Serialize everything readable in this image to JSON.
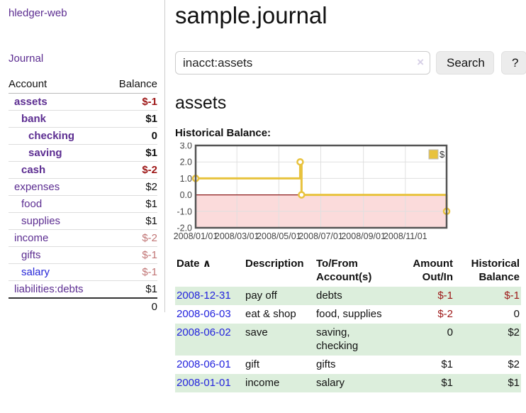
{
  "app": {
    "title": "hledger-web"
  },
  "sidebar": {
    "journal_label": "Journal",
    "accounts_table": {
      "headers": {
        "account": "Account",
        "balance": "Balance"
      },
      "rows": [
        {
          "name": "assets",
          "balance": "$-1",
          "depth": 1,
          "bold": true,
          "balance_style": "negstrong",
          "link_style": "purple"
        },
        {
          "name": "bank",
          "balance": "$1",
          "depth": 2,
          "bold": true,
          "balance_style": "normal",
          "link_style": "purple"
        },
        {
          "name": "checking",
          "balance": "0",
          "depth": 3,
          "bold": true,
          "balance_style": "normal",
          "link_style": "purple"
        },
        {
          "name": "saving",
          "balance": "$1",
          "depth": 3,
          "bold": true,
          "balance_style": "normal",
          "link_style": "purple"
        },
        {
          "name": "cash",
          "balance": "$-2",
          "depth": 2,
          "bold": true,
          "balance_style": "negstrong",
          "link_style": "purple"
        },
        {
          "name": "expenses",
          "balance": "$2",
          "depth": 1,
          "bold": false,
          "balance_style": "normal",
          "link_style": "purple"
        },
        {
          "name": "food",
          "balance": "$1",
          "depth": 2,
          "bold": false,
          "balance_style": "normal",
          "link_style": "purple"
        },
        {
          "name": "supplies",
          "balance": "$1",
          "depth": 2,
          "bold": false,
          "balance_style": "normal",
          "link_style": "purple"
        },
        {
          "name": "income",
          "balance": "$-2",
          "depth": 1,
          "bold": false,
          "balance_style": "negmuted",
          "link_style": "purple"
        },
        {
          "name": "gifts",
          "balance": "$-1",
          "depth": 2,
          "bold": false,
          "balance_style": "negmuted",
          "link_style": "purple"
        },
        {
          "name": "salary",
          "balance": "$-1",
          "depth": 2,
          "bold": false,
          "balance_style": "negmuted",
          "link_style": "blue"
        },
        {
          "name": "liabilities:debts",
          "balance": "$1",
          "depth": 1,
          "bold": false,
          "balance_style": "normal",
          "link_style": "purple"
        }
      ],
      "total": "0"
    }
  },
  "header": {
    "title": "sample.journal"
  },
  "search": {
    "value": "inacct:assets",
    "clear_icon": "×",
    "button_label": "Search",
    "help_label": "?"
  },
  "account_page": {
    "title": "assets",
    "chart_label": "Historical Balance:"
  },
  "chart_data": {
    "type": "line",
    "title": "Historical Balance:",
    "step": true,
    "series": [
      {
        "name": "$",
        "color": "#e8c23d",
        "points": [
          {
            "date": "2008/01/01",
            "day": 0,
            "value": 1
          },
          {
            "date": "2008/06/01",
            "day": 152,
            "value": 2
          },
          {
            "date": "2008/06/03",
            "day": 154,
            "value": 0
          },
          {
            "date": "2008/12/31",
            "day": 365,
            "value": -1
          }
        ]
      }
    ],
    "x_ticks": [
      {
        "label": "2008/01/01",
        "day": 0
      },
      {
        "label": "2008/03/01",
        "day": 60
      },
      {
        "label": "2008/05/01",
        "day": 121
      },
      {
        "label": "2008/07/01",
        "day": 182
      },
      {
        "label": "2008/09/01",
        "day": 244
      },
      {
        "label": "2008/11/01",
        "day": 305
      }
    ],
    "y_ticks": [
      "3.0",
      "2.0",
      "1.0",
      "0.0",
      "-1.0",
      "-2.0"
    ],
    "ylim": [
      -2,
      3
    ],
    "xlim_days": [
      0,
      365
    ],
    "grid": true,
    "legend": {
      "label": "$",
      "position": "top-right"
    },
    "negative_region": {
      "from": 0,
      "to": -2,
      "fill": "#fbdbdb",
      "line_color": "#8b1a1a"
    },
    "border_color": "#545454",
    "grid_color": "#e0e0e0"
  },
  "register_table": {
    "headers": {
      "date": "Date",
      "sort_indicator": "∧",
      "description": "Description",
      "account": "To/From Account(s)",
      "amount": "Amount Out/In",
      "balance": "Historical Balance"
    },
    "rows": [
      {
        "date": "2008-12-31",
        "description": "pay off",
        "accounts": "debts",
        "amount": "$-1",
        "amount_neg": true,
        "balance": "$-1",
        "balance_neg": true
      },
      {
        "date": "2008-06-03",
        "description": "eat & shop",
        "accounts": "food, supplies",
        "amount": "$-2",
        "amount_neg": true,
        "balance": "0",
        "balance_neg": false
      },
      {
        "date": "2008-06-02",
        "description": "save",
        "accounts": "saving, checking",
        "amount": "0",
        "amount_neg": false,
        "balance": "$2",
        "balance_neg": false
      },
      {
        "date": "2008-06-01",
        "description": "gift",
        "accounts": "gifts",
        "amount": "$1",
        "amount_neg": false,
        "balance": "$2",
        "balance_neg": false
      },
      {
        "date": "2008-01-01",
        "description": "income",
        "accounts": "salary",
        "amount": "$1",
        "amount_neg": false,
        "balance": "$1",
        "balance_neg": false
      }
    ]
  },
  "colors": {
    "link_purple": "#5c2d91",
    "link_blue": "#2323dd",
    "negative_strong": "#9d1616",
    "negative_muted": "#c17575",
    "row_stripe_green": "#dceedc",
    "series_yellow": "#e8c23d",
    "negative_fill_pink": "#fbdbdb",
    "zero_line_red": "#8b1a1a"
  }
}
